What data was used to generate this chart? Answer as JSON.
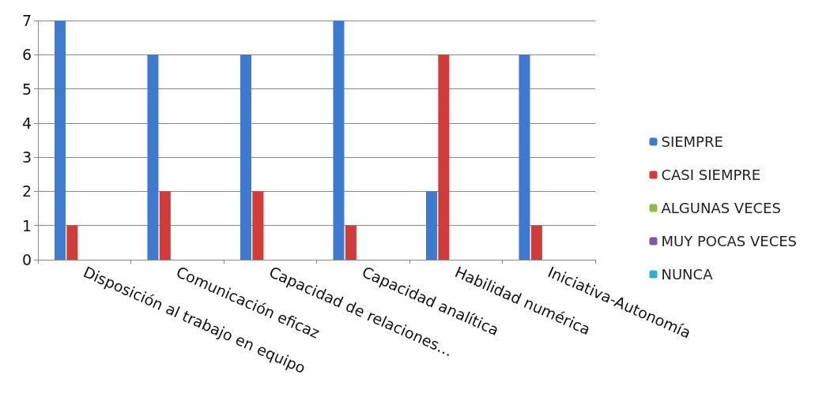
{
  "chart_data": {
    "type": "bar",
    "categories": [
      "Disposición al trabajo en equipo",
      "Comunicación eficaz",
      "Capacidad de relaciones…",
      "Capacidad analítica",
      "Habilidad numérica",
      "Iniciativa-Autonomía"
    ],
    "series": [
      {
        "name": "SIEMPRE",
        "color": "#3e7bd0",
        "values": [
          7,
          6,
          6,
          7,
          2,
          6
        ]
      },
      {
        "name": "CASI SIEMPRE",
        "color": "#d23c38",
        "values": [
          1,
          2,
          2,
          1,
          6,
          1
        ]
      },
      {
        "name": "ALGUNAS VECES",
        "color": "#8fbc3f",
        "values": [
          0,
          0,
          0,
          0,
          0,
          0
        ]
      },
      {
        "name": "MUY POCAS VECES",
        "color": "#7e59a8",
        "values": [
          0,
          0,
          0,
          0,
          0,
          0
        ]
      },
      {
        "name": "NUNCA",
        "color": "#2fb0cc",
        "values": [
          0,
          0,
          0,
          0,
          0,
          0
        ]
      }
    ],
    "ylim": [
      0,
      7
    ],
    "yticks": [
      0,
      1,
      2,
      3,
      4,
      5,
      6,
      7
    ],
    "grid": "y",
    "legend": "right"
  }
}
